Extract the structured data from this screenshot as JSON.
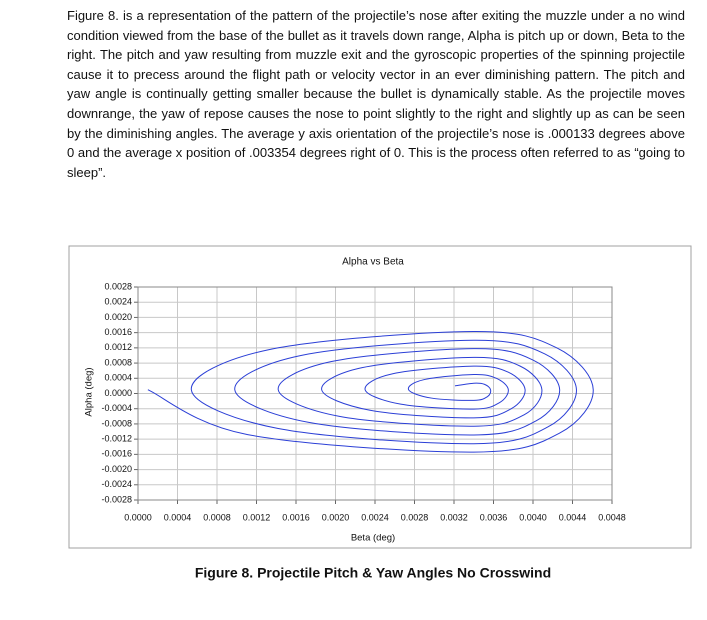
{
  "body": {
    "paragraph": "Figure 8. is a representation of the pattern of the projectile’s nose after exiting the muzzle under a no wind condition viewed from the base of the bullet as it travels down range, Alpha is pitch up or down, Beta to the right. The pitch and yaw resulting from muzzle exit and the gyroscopic properties of the spinning projectile cause it to precess around the flight path or velocity vector in an ever diminishing pattern. The pitch and yaw angle is continually getting smaller because the bullet is dynamically stable. As the projectile moves downrange, the yaw of repose causes the nose to point slightly to the right and slightly up as can be seen by the diminishing angles. The average y axis orientation of the projectile’s nose is .000133 degrees above 0 and the average x position of .003354 degrees right of 0. This is the process often referred to as “going to sleep”.",
    "caption": "Figure 8. Projectile Pitch & Yaw Angles No Crosswind"
  },
  "chart_data": {
    "type": "line",
    "title": "Alpha vs Beta",
    "x_label": "Beta (deg)",
    "y_label": "Alpha (deg)",
    "color": "#2b3fd6",
    "grid": true,
    "x": [
      0.0001,
      0.00111,
      0.0034,
      0.00427,
      0.00461,
      0.00424,
      0.0034,
      0.00134,
      0.00054,
      0.00142,
      0.0034,
      0.00415,
      0.00444,
      0.00412,
      0.0034,
      0.00165,
      0.00098,
      0.00173,
      0.0034,
      0.00403,
      0.00427,
      0.004,
      0.0034,
      0.00196,
      0.00142,
      0.00204,
      0.0034,
      0.00391,
      0.00409,
      0.00387,
      0.0034,
      0.00227,
      0.00186,
      0.00235,
      0.0034,
      0.00378,
      0.00392,
      0.00375,
      0.0034,
      0.00258,
      0.0023,
      0.00266,
      0.0034,
      0.00366,
      0.00375,
      0.00363,
      0.0034,
      0.00289,
      0.00274,
      0.00297,
      0.0034,
      0.00354,
      0.00357,
      0.00351,
      0.0034,
      0.00321
    ],
    "values": [
      0.0001,
      -0.00108,
      -0.00154,
      -0.00104,
      0.0001,
      0.0012,
      0.00163,
      0.00116,
      0.0001,
      -0.00092,
      -0.00132,
      -0.00088,
      0.0001,
      0.00104,
      0.0014,
      0.001,
      0.0001,
      -0.00076,
      -0.00109,
      -0.00072,
      0.0001,
      0.00088,
      0.00118,
      0.00084,
      0.0001,
      -0.0006,
      -0.00086,
      -0.00056,
      0.0001,
      0.00072,
      0.00095,
      0.00068,
      0.0001,
      -0.00044,
      -0.00064,
      -0.0004,
      0.0001,
      0.00056,
      0.00072,
      0.00052,
      0.0001,
      -0.00028,
      -0.00041,
      -0.00024,
      0.0001,
      0.0004,
      0.0005,
      0.00036,
      0.0001,
      -0.00012,
      -0.00018,
      -8e-05,
      0.0001,
      0.00024,
      0.00027,
      0.0002
    ],
    "xlim": [
      0,
      0.0048
    ],
    "xticks": [
      {
        "value": 0,
        "label": "0.0000"
      },
      {
        "value": 0.0004,
        "label": "0.0004"
      },
      {
        "value": 0.0008,
        "label": "0.0008"
      },
      {
        "value": 0.0012,
        "label": "0.0012"
      },
      {
        "value": 0.0016,
        "label": "0.0016"
      },
      {
        "value": 0.002,
        "label": "0.0020"
      },
      {
        "value": 0.0024,
        "label": "0.0024"
      },
      {
        "value": 0.0028,
        "label": "0.0028"
      },
      {
        "value": 0.0032,
        "label": "0.0032"
      },
      {
        "value": 0.0036,
        "label": "0.0036"
      },
      {
        "value": 0.004,
        "label": "0.0040"
      },
      {
        "value": 0.0044,
        "label": "0.0044"
      },
      {
        "value": 0.0048,
        "label": "0.0048"
      }
    ],
    "ylim": [
      -0.0028,
      0.0028
    ],
    "yticks": [
      {
        "value": 0.0028,
        "label": "0.0028"
      },
      {
        "value": 0.0024,
        "label": "0.0024"
      },
      {
        "value": 0.002,
        "label": "0.0020"
      },
      {
        "value": 0.0016,
        "label": "0.0016"
      },
      {
        "value": 0.0012,
        "label": "0.0012"
      },
      {
        "value": 0.0008,
        "label": "0.0008"
      },
      {
        "value": 0.0004,
        "label": "0.0004"
      },
      {
        "value": 0,
        "label": "0.0000"
      },
      {
        "value": -0.0004,
        "label": "-0.0004"
      },
      {
        "value": -0.0008,
        "label": "-0.0008"
      },
      {
        "value": -0.0012,
        "label": "-0.0012"
      },
      {
        "value": -0.0016,
        "label": "-0.0016"
      },
      {
        "value": -0.002,
        "label": "-0.0020"
      },
      {
        "value": -0.0024,
        "label": "-0.0024"
      },
      {
        "value": -0.0028,
        "label": "-0.0028"
      }
    ]
  }
}
